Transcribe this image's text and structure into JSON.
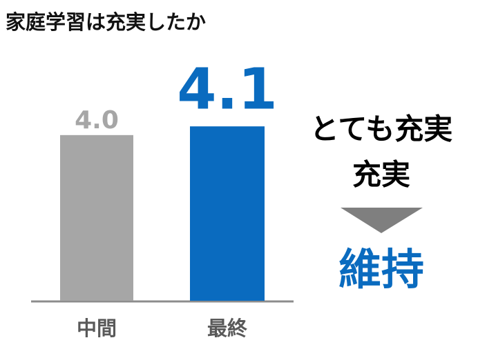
{
  "chart_data": {
    "type": "bar",
    "title": "家庭学習は充実したか",
    "categories": [
      "中間",
      "最終"
    ],
    "values": [
      4.0,
      4.1
    ],
    "value_labels": [
      "4.0",
      "4.1"
    ],
    "colors": [
      "#a6a6a6",
      "#0a6bbf"
    ],
    "ylim": [
      2.1,
      4.6
    ],
    "annotations": [
      "とても充実",
      "充実",
      "維持"
    ]
  }
}
